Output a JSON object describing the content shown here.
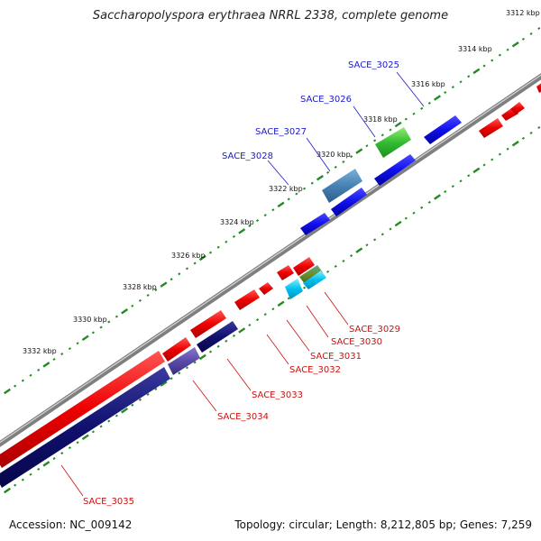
{
  "title": "Saccharopolyspora erythraea NRRL 2338, complete genome",
  "footer": {
    "accession": "Accession: NC_009142",
    "summary": "Topology: circular; Length: 8,212,805 bp; Genes: 7,259"
  },
  "tick_labels": [
    "3312 kbp",
    "3314 kbp",
    "3316 kbp",
    "3318 kbp",
    "3320 kbp",
    "3322 kbp",
    "3324 kbp",
    "3326 kbp",
    "3328 kbp",
    "3330 kbp",
    "3332 kbp"
  ],
  "genes_top": [
    "SACE_3025",
    "SACE_3026",
    "SACE_3027",
    "SACE_3028"
  ],
  "genes_bottom": [
    "SACE_3029",
    "SACE_3030",
    "SACE_3031",
    "SACE_3032",
    "SACE_3033",
    "SACE_3034",
    "SACE_3035"
  ],
  "colors": {
    "forward_label": "#1a1acc",
    "reverse_label": "#cc1111",
    "tick": "#228b22",
    "backbone": "#808080"
  }
}
